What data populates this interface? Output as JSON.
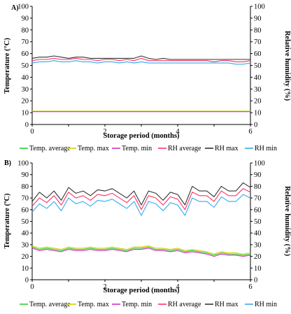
{
  "chart_data": [
    {
      "type": "line",
      "panel_label": "A)",
      "xlabel": "Storage period (months)",
      "ylabel_left": "Temperature (°C)",
      "ylabel_right": "Relative humidity  (%)",
      "xlim": [
        0,
        6
      ],
      "ylim": [
        0,
        100
      ],
      "x_ticks": [
        "0",
        "2",
        "4",
        "6"
      ],
      "y_ticks": [
        "0",
        "10",
        "20",
        "30",
        "40",
        "50",
        "60",
        "70",
        "80",
        "90",
        "100"
      ],
      "grid": false,
      "legend_position": "bottom",
      "x": [
        0,
        0.2,
        0.4,
        0.6,
        0.8,
        1.0,
        1.2,
        1.4,
        1.6,
        1.8,
        2.0,
        2.2,
        2.4,
        2.6,
        2.8,
        3.0,
        3.2,
        3.4,
        3.6,
        3.8,
        4.0,
        4.2,
        4.4,
        4.6,
        4.8,
        5.0,
        5.2,
        5.4,
        5.6,
        5.8,
        6.0
      ],
      "series": [
        {
          "name": "Temp. average",
          "color": "#33cc33",
          "values": [
            11,
            11,
            11,
            11,
            11,
            11,
            11,
            11,
            11,
            11,
            11,
            11,
            11,
            11,
            11,
            11,
            11,
            11,
            11,
            11,
            11,
            11,
            11,
            11,
            11,
            11,
            11,
            11,
            11,
            11,
            11
          ]
        },
        {
          "name": "Temp. max",
          "color": "#d4d400",
          "values": [
            11.3,
            11.3,
            11.3,
            11.3,
            11.3,
            11.3,
            11.3,
            11.3,
            11.3,
            11.3,
            11.3,
            11.3,
            11.3,
            11.3,
            11.3,
            11.3,
            11.3,
            11.3,
            11.3,
            11.3,
            11.3,
            11.3,
            11.3,
            11.3,
            11.3,
            11.3,
            11.3,
            11.3,
            11.3,
            11.3,
            11.3
          ]
        },
        {
          "name": "Temp. min",
          "color": "#cc33cc",
          "values": [
            10.8,
            10.8,
            10.8,
            10.8,
            10.8,
            10.8,
            10.8,
            10.8,
            10.8,
            10.8,
            10.8,
            10.8,
            10.8,
            10.8,
            10.8,
            10.8,
            10.8,
            10.8,
            10.8,
            10.8,
            10.8,
            10.8,
            10.8,
            10.8,
            10.8,
            10.8,
            10.8,
            10.8,
            10.8,
            10.8,
            10.8
          ]
        },
        {
          "name": "RH average",
          "color": "#ff3366",
          "values": [
            54,
            55,
            55,
            56,
            55,
            55,
            56,
            55,
            55,
            54,
            55,
            55,
            54,
            55,
            54,
            56,
            54,
            54,
            54,
            54,
            54,
            54,
            54,
            54,
            54,
            53,
            54,
            54,
            53,
            53,
            54
          ]
        },
        {
          "name": "RH max",
          "color": "#333333",
          "values": [
            56,
            57,
            57,
            58,
            57,
            56,
            57,
            57,
            56,
            56,
            56,
            56,
            56,
            56,
            56,
            58,
            56,
            55,
            56,
            55,
            55,
            55,
            55,
            55,
            55,
            55,
            55,
            55,
            55,
            55,
            55
          ]
        },
        {
          "name": "RH min",
          "color": "#33aaee",
          "values": [
            52,
            53,
            53,
            54,
            53,
            53,
            54,
            53,
            53,
            52,
            53,
            53,
            52,
            53,
            52,
            53,
            52,
            52,
            52,
            52,
            52,
            52,
            52,
            52,
            52,
            52,
            52,
            52,
            51,
            51,
            52
          ]
        }
      ]
    },
    {
      "type": "line",
      "panel_label": "B)",
      "xlabel": "Storage period (months)",
      "ylabel_left": "Temperature (ºC)",
      "ylabel_right": "Relative humidity  (%)",
      "xlim": [
        0,
        6
      ],
      "ylim": [
        0,
        100
      ],
      "x_ticks": [
        "0",
        "2",
        "4",
        "6"
      ],
      "y_ticks": [
        "0",
        "10",
        "20",
        "30",
        "40",
        "50",
        "60",
        "70",
        "80",
        "90",
        "100"
      ],
      "grid": false,
      "legend_position": "bottom",
      "x": [
        0,
        0.2,
        0.4,
        0.6,
        0.8,
        1.0,
        1.2,
        1.4,
        1.6,
        1.8,
        2.0,
        2.2,
        2.4,
        2.6,
        2.8,
        3.0,
        3.2,
        3.4,
        3.6,
        3.8,
        4.0,
        4.2,
        4.4,
        4.6,
        4.8,
        5.0,
        5.2,
        5.4,
        5.6,
        5.8,
        6.0
      ],
      "series": [
        {
          "name": "Temp. average",
          "color": "#33cc33",
          "values": [
            28,
            26,
            27,
            26,
            25,
            27,
            26,
            26,
            27,
            26,
            26,
            27,
            26,
            25,
            27,
            27,
            28,
            26,
            26,
            25,
            26,
            24,
            25,
            24,
            23,
            21,
            23,
            22,
            22,
            21,
            22
          ]
        },
        {
          "name": "Temp. max",
          "color": "#d4d400",
          "values": [
            29,
            27,
            28,
            27,
            26,
            28,
            27,
            27,
            28,
            27,
            27,
            28,
            27,
            26,
            28,
            28,
            29,
            27,
            27,
            26,
            27,
            25,
            26,
            25,
            24,
            22,
            24,
            23,
            23,
            22,
            23
          ]
        },
        {
          "name": "Temp. min",
          "color": "#cc33cc",
          "values": [
            27,
            25,
            26,
            25,
            24,
            26,
            25,
            25,
            26,
            25,
            25,
            26,
            25,
            24,
            26,
            26,
            27,
            25,
            25,
            24,
            25,
            23,
            24,
            23,
            22,
            20,
            22,
            21,
            21,
            20,
            21
          ]
        },
        {
          "name": "RH average",
          "color": "#ff3366",
          "values": [
            63,
            70,
            66,
            72,
            64,
            75,
            70,
            72,
            68,
            73,
            72,
            74,
            70,
            66,
            72,
            60,
            72,
            70,
            64,
            71,
            69,
            60,
            75,
            72,
            72,
            67,
            76,
            72,
            72,
            78,
            75
          ]
        },
        {
          "name": "RH max",
          "color": "#333333",
          "values": [
            67,
            75,
            70,
            76,
            68,
            79,
            74,
            76,
            72,
            77,
            76,
            78,
            74,
            70,
            76,
            64,
            76,
            74,
            68,
            75,
            73,
            64,
            80,
            76,
            76,
            71,
            80,
            76,
            76,
            83,
            79
          ]
        },
        {
          "name": "RH min",
          "color": "#33aaee",
          "values": [
            58,
            65,
            61,
            67,
            59,
            70,
            65,
            67,
            63,
            68,
            67,
            69,
            65,
            61,
            67,
            55,
            67,
            65,
            59,
            66,
            64,
            55,
            70,
            67,
            67,
            62,
            71,
            67,
            67,
            73,
            70
          ]
        }
      ]
    }
  ]
}
